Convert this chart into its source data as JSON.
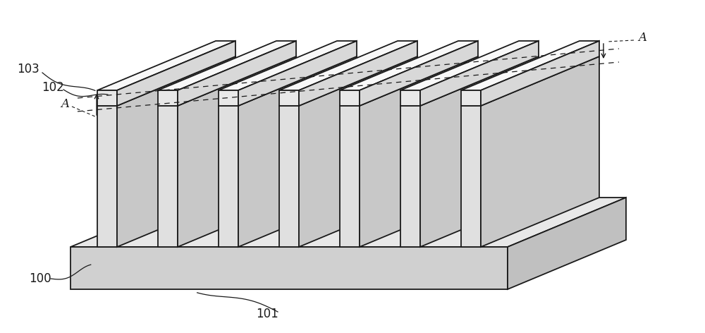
{
  "bg_color": "#ffffff",
  "line_color": "#1a1a1a",
  "figsize": [
    10.0,
    4.72
  ],
  "dpi": 100,
  "n_fins": 7,
  "colors": {
    "sub_top": "#e8e8e8",
    "sub_front": "#d0d0d0",
    "sub_right": "#c0c0c0",
    "fin_top": "#f0f0f0",
    "fin_front": "#e0e0e0",
    "fin_right": "#c8c8c8",
    "cap_top": "#f8f8f8",
    "cap_front": "#e8e8e8",
    "cap_right": "#d8d8d8"
  },
  "labels": [
    "100",
    "101",
    "102",
    "103"
  ],
  "label_A": "A"
}
